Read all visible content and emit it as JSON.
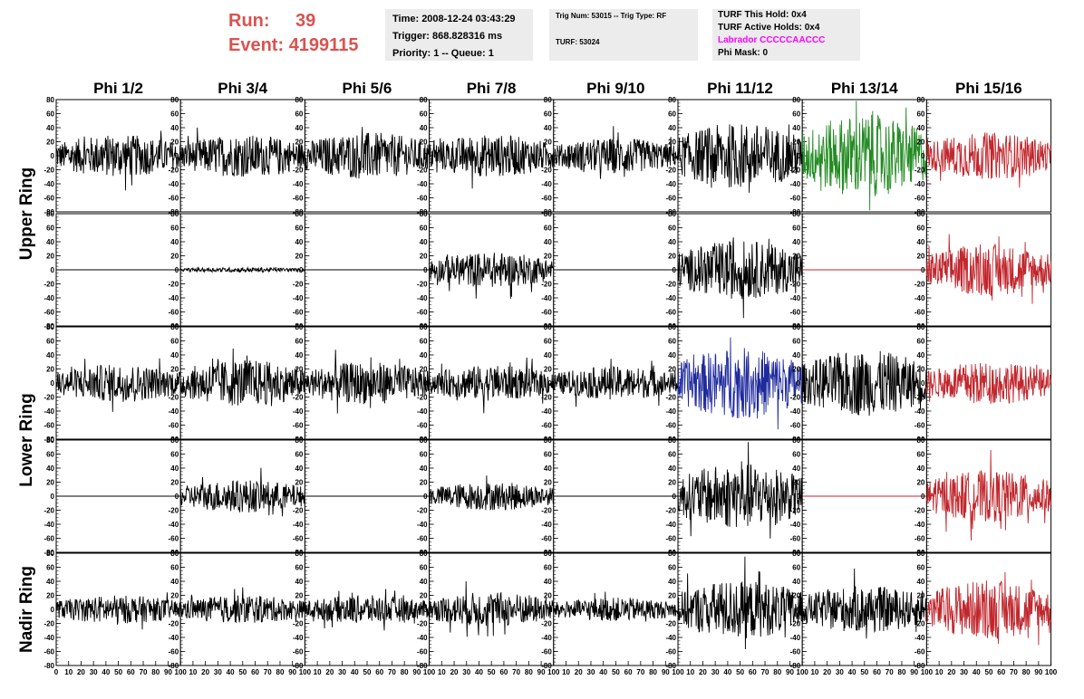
{
  "header": {
    "run_label": "Run:",
    "run_value": "39",
    "event_label": "Event:",
    "event_value": "4199115",
    "time": "Time: 2008-12-24 03:43:29",
    "trigger": "Trigger: 868.828316 ms",
    "priority": "Priority: 1 -- Queue: 1",
    "trig_num": "Trig Num: 53015 -- Trig Type: RF",
    "turf": "TURF: 53024",
    "turf_this_hold": "TURF This Hold: 0x4",
    "turf_active_holds": "TURF Active Holds: 0x4",
    "labrador": "Labrador CCCCCAACCC",
    "phi_mask": "Phi Mask: 0"
  },
  "colors": {
    "run_text": "#d9534f",
    "labrador_text": "#ff00ff",
    "info_bg": "#ececec"
  },
  "chart_data": {
    "type": "line",
    "columns": [
      "Phi 1/2",
      "Phi 3/4",
      "Phi 5/6",
      "Phi 7/8",
      "Phi 9/10",
      "Phi 11/12",
      "Phi 13/14",
      "Phi 15/16"
    ],
    "rows": [
      "Upper Ring",
      "Lower Ring",
      "Nadir Ring"
    ],
    "xlim": [
      0,
      100
    ],
    "ylim": [
      -80,
      80
    ],
    "y_ticks": [
      -80,
      -60,
      -40,
      -20,
      0,
      20,
      40,
      60,
      80
    ],
    "x_ticks": [
      0,
      10,
      20,
      30,
      40,
      50,
      60,
      70,
      80,
      90,
      100
    ],
    "panel_colors": [
      [
        "#000000",
        "#000000",
        "#000000",
        "#000000",
        "#000000",
        "#000000",
        "#228b22",
        "#c0272d"
      ],
      [
        "#000000",
        "#000000",
        "#000000",
        "#000000",
        "#000000",
        "#000000",
        "#c0272d",
        "#c0272d"
      ],
      [
        "#000000",
        "#000000",
        "#000000",
        "#000000",
        "#000000",
        "#1f2a9c",
        "#000000",
        "#c0272d"
      ],
      [
        "#000000",
        "#000000",
        "#000000",
        "#000000",
        "#000000",
        "#000000",
        "#c0272d",
        "#c0272d"
      ],
      [
        "#000000",
        "#000000",
        "#000000",
        "#000000",
        "#000000",
        "#000000",
        "#000000",
        "#c0272d"
      ]
    ],
    "amplitude": [
      [
        18,
        18,
        20,
        18,
        15,
        28,
        35,
        20
      ],
      [
        0,
        2,
        0,
        15,
        0,
        25,
        0,
        22
      ],
      [
        16,
        20,
        18,
        15,
        14,
        30,
        28,
        18
      ],
      [
        0,
        14,
        0,
        12,
        0,
        28,
        0,
        22
      ],
      [
        12,
        12,
        12,
        15,
        10,
        25,
        20,
        25
      ]
    ]
  }
}
